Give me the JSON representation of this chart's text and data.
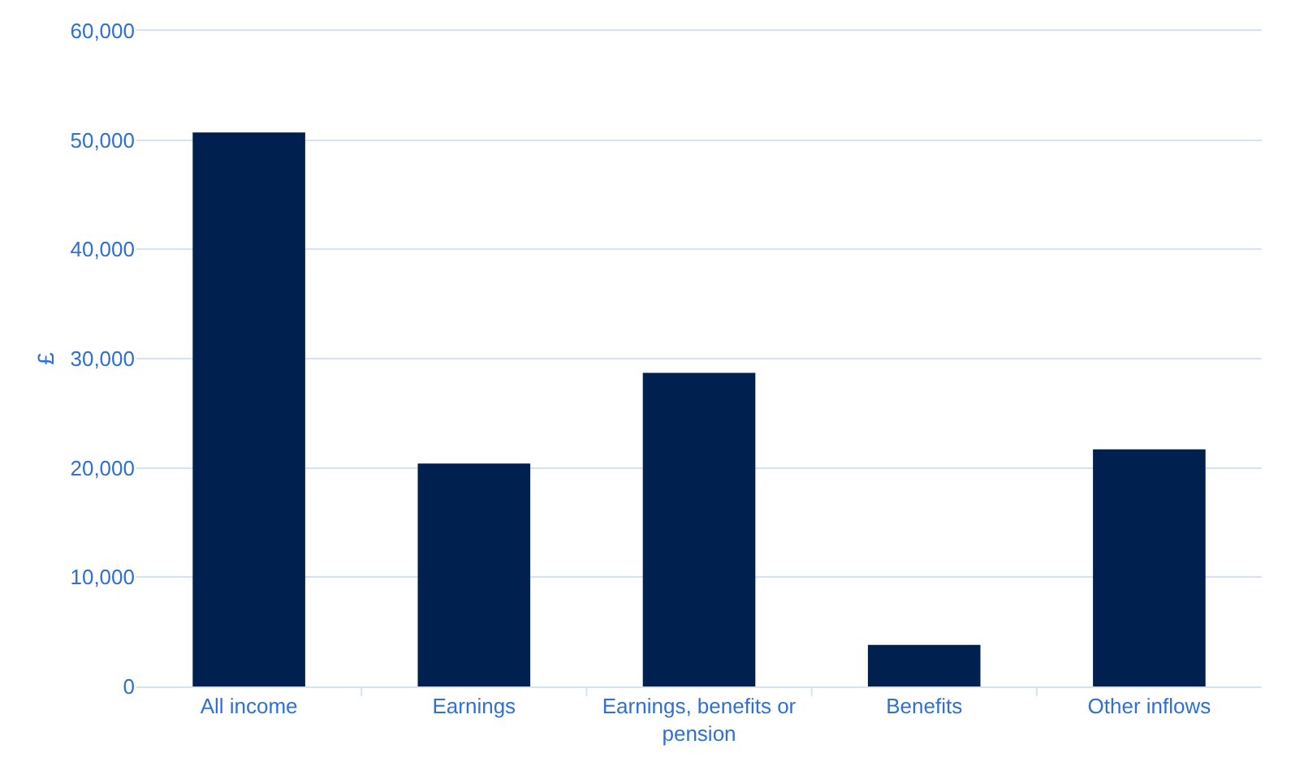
{
  "chart_data": {
    "type": "bar",
    "ylabel": "£",
    "categories": [
      "All income",
      "Earnings",
      "Earnings, benefits or pension",
      "Benefits",
      "Other inflows"
    ],
    "values": [
      50700,
      20400,
      28700,
      3800,
      21700
    ],
    "color": "#002050",
    "ylim": [
      0,
      60000
    ],
    "yticks": [
      {
        "value": 0,
        "label": "0"
      },
      {
        "value": 10000,
        "label": "10,000"
      },
      {
        "value": 20000,
        "label": "20,000"
      },
      {
        "value": 30000,
        "label": "30,000"
      },
      {
        "value": 40000,
        "label": "40,000"
      },
      {
        "value": 50000,
        "label": "50,000"
      },
      {
        "value": 60000,
        "label": "60,000"
      }
    ],
    "grid": "y"
  }
}
